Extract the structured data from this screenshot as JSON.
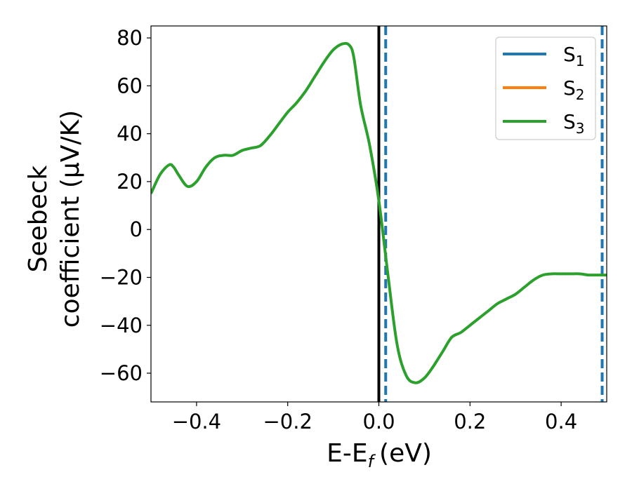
{
  "chart_data": {
    "type": "line",
    "xlabel": "E-E",
    "xlabel_sub": "f",
    "xlabel_unit": "(eV)",
    "ylabel_line1": "Seebeck",
    "ylabel_line2": "coefficient  (μV/K)",
    "xlim": [
      -0.5,
      0.5
    ],
    "ylim": [
      -72,
      85
    ],
    "x_ticks": [
      -0.4,
      -0.2,
      0.0,
      0.2,
      0.4
    ],
    "x_tick_labels": [
      "−0.4",
      "−0.2",
      "0.0",
      "0.2",
      "0.4"
    ],
    "y_ticks": [
      80,
      60,
      40,
      20,
      0,
      -20,
      -40,
      -60
    ],
    "y_tick_labels": [
      "80",
      "60",
      "40",
      "20",
      "0",
      "−20",
      "−40",
      "−60"
    ],
    "grid": false,
    "legend_position": "top-right",
    "series": [
      {
        "name": "S",
        "sub": "1",
        "color": "#1f77b4",
        "x": [],
        "y": []
      },
      {
        "name": "S",
        "sub": "2",
        "color": "#ff7f0e",
        "x": [],
        "y": []
      },
      {
        "name": "S",
        "sub": "3",
        "color": "#2ca02c",
        "x": [
          -0.5,
          -0.48,
          -0.46,
          -0.45,
          -0.44,
          -0.42,
          -0.4,
          -0.38,
          -0.36,
          -0.34,
          -0.32,
          -0.3,
          -0.28,
          -0.26,
          -0.24,
          -0.22,
          -0.2,
          -0.18,
          -0.16,
          -0.14,
          -0.12,
          -0.1,
          -0.08,
          -0.065,
          -0.055,
          -0.04,
          -0.02,
          0.0,
          0.02,
          0.04,
          0.06,
          0.08,
          0.1,
          0.12,
          0.14,
          0.16,
          0.18,
          0.2,
          0.22,
          0.24,
          0.26,
          0.28,
          0.3,
          0.32,
          0.34,
          0.36,
          0.38,
          0.4,
          0.42,
          0.44,
          0.46,
          0.48,
          0.5
        ],
        "y": [
          15,
          23,
          27,
          26,
          23,
          18,
          20,
          26,
          30,
          31,
          31,
          33,
          34,
          35,
          39,
          44,
          49,
          53,
          58,
          64,
          70,
          75,
          77.5,
          77,
          72,
          52,
          35,
          12,
          -19,
          -48,
          -61,
          -64,
          -62,
          -57,
          -51,
          -45,
          -43,
          -40,
          -37,
          -34,
          -31,
          -29,
          -27,
          -24,
          -21,
          -19,
          -18.5,
          -18.5,
          -18.5,
          -18.5,
          -19,
          -19,
          -19
        ]
      }
    ],
    "vlines": [
      {
        "x": 0.0,
        "color": "#000000",
        "style": "solid"
      },
      {
        "x": 0.015,
        "color": "#1f77b4",
        "style": "dashed"
      },
      {
        "x": 0.49,
        "color": "#1f77b4",
        "style": "dashed"
      }
    ]
  }
}
